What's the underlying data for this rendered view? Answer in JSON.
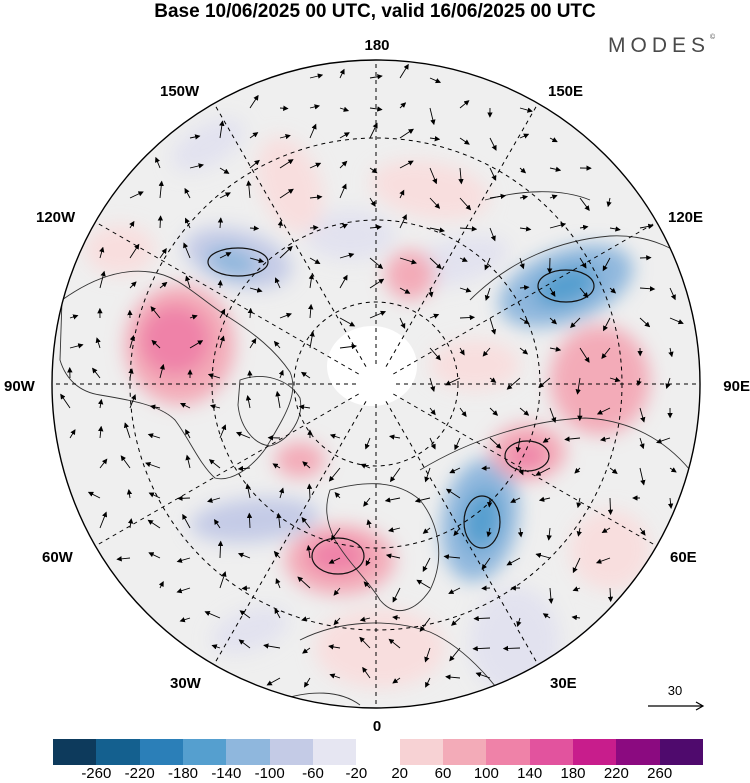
{
  "title": "Base 10/06/2025 00 UTC, valid 16/06/2025 00 UTC",
  "brand": "MODES",
  "brand_mark": "©",
  "longitude_labels": {
    "top": "180",
    "bottom": "0",
    "left": "90W",
    "right": "90E",
    "w150": "150W",
    "e150": "150E",
    "w120": "120W",
    "e120": "120E",
    "w60": "60W",
    "e60": "60E",
    "w30": "30W",
    "e30": "30E"
  },
  "reference_vector": "30",
  "colorbar": {
    "colors": [
      "#0d3a5c",
      "#14608f",
      "#2b7fb8",
      "#559fcf",
      "#8fb7dd",
      "#c4cbe6",
      "#e6e6f2",
      "#ffffff",
      "#f7d2d4",
      "#f3abb8",
      "#ef82a8",
      "#e2539e",
      "#c81d8c",
      "#8b0a80",
      "#4f0a6d"
    ],
    "tick_labels": [
      "-260",
      "-220",
      "-180",
      "-140",
      "-100",
      "-60",
      "-20",
      "20",
      "60",
      "100",
      "140",
      "180",
      "220",
      "260"
    ]
  },
  "anomaly_colors": {
    "neg_light": "#e2e2ef",
    "neg_mid": "#c4cbe6",
    "neg_strong": "#8fb7dd",
    "neg_core": "#559fcf",
    "neutral": "#efefef",
    "pos_light": "#f8dede",
    "pos_mid": "#f3abb8",
    "pos_strong": "#ef82a8"
  }
}
